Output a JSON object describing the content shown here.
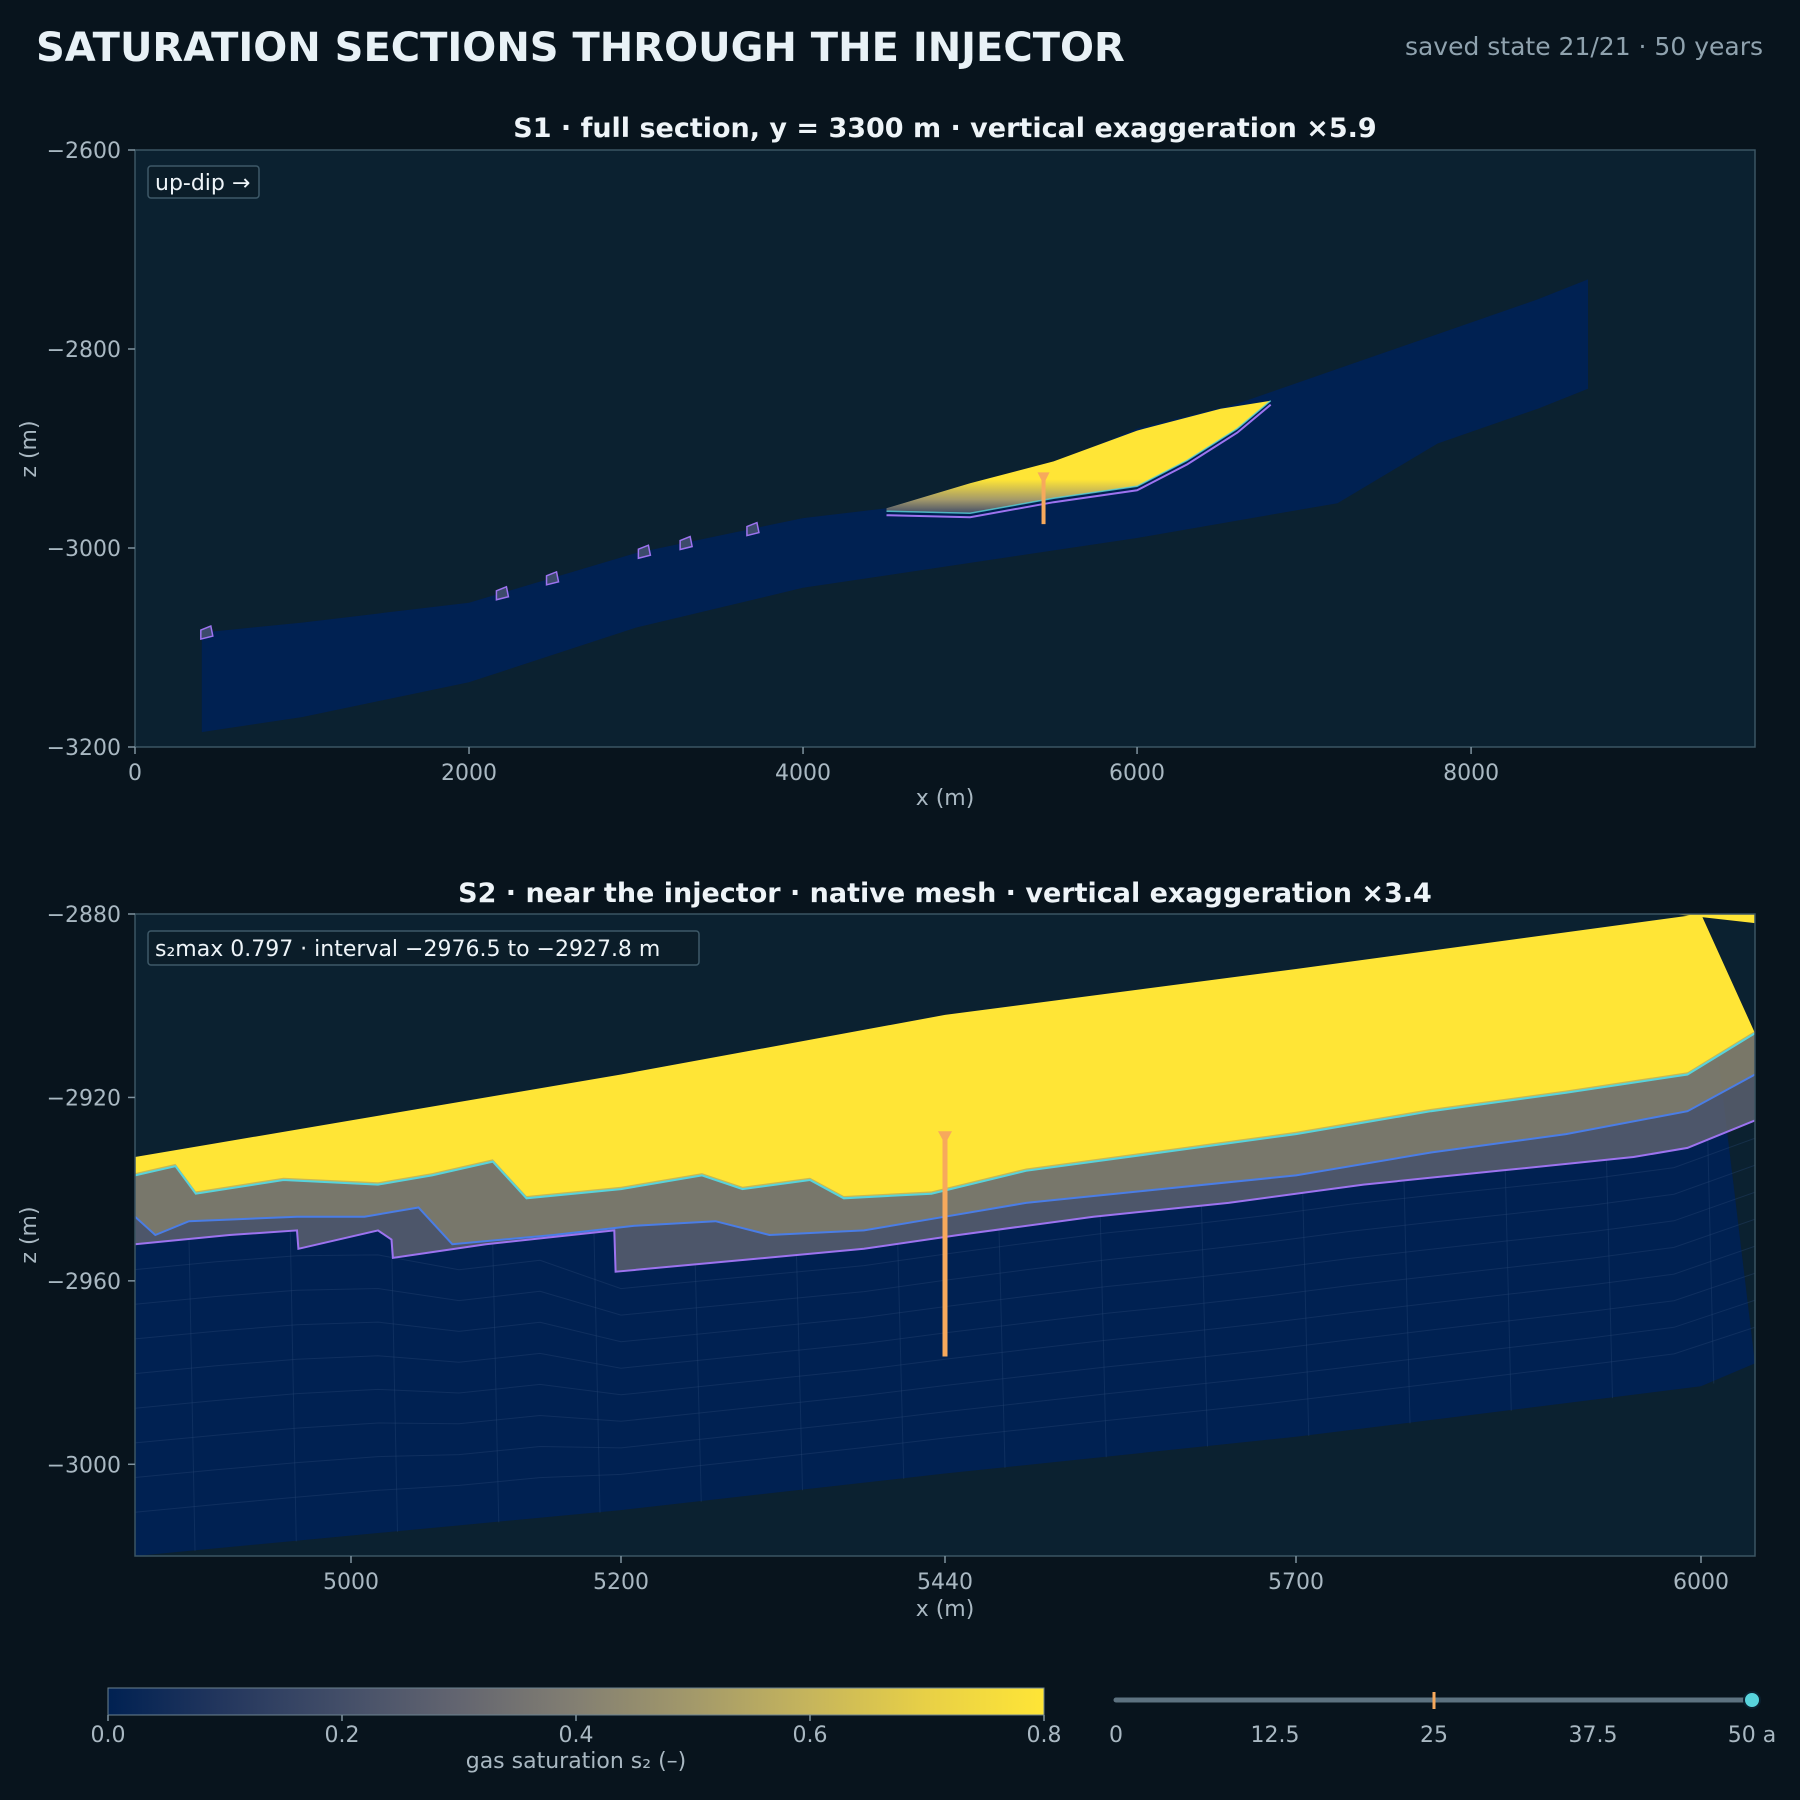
{
  "header": {
    "title": "SATURATION SECTIONS THROUGH THE INJECTOR",
    "state": "saved state 21/21 · 50 years"
  },
  "colors": {
    "page_bg": "#08141d",
    "plot_bg": "#0b2130",
    "reservoir": "#002152",
    "plume": "#ffe536",
    "contour_cyan": "#58d3dc",
    "contour_blue": "#4a7de6",
    "contour_violet": "#9d73f0",
    "well": "#f7a95c",
    "slider_thumb": "#58d3dc"
  },
  "chart_data": [
    {
      "id": "S1",
      "type": "heatmap",
      "title": "S1 · full section, y = 3300 m · vertical exaggeration ×5.9",
      "badge": "up-dip →",
      "xlabel": "x (m)",
      "ylabel": "z (m)",
      "xlim": [
        0,
        9700
      ],
      "ylim": [
        -3200,
        -2600
      ],
      "xticks": [
        "0",
        "2000",
        "4000",
        "6000",
        "8000"
      ],
      "xtick_values": [
        0,
        2000,
        4000,
        6000,
        8000
      ],
      "yticks": [
        "−2600",
        "−2800",
        "−3000",
        "−3200"
      ],
      "ytick_values": [
        -2600,
        -2800,
        -3000,
        -3200
      ],
      "formation_top": [
        [
          400,
          -3085
        ],
        [
          1000,
          -3075
        ],
        [
          2000,
          -3055
        ],
        [
          3000,
          -3005
        ],
        [
          4000,
          -2970
        ],
        [
          4500,
          -2960
        ],
        [
          5000,
          -2935
        ],
        [
          5500,
          -2915
        ],
        [
          6000,
          -2880
        ],
        [
          6600,
          -2855
        ],
        [
          7200,
          -2820
        ],
        [
          7800,
          -2785
        ],
        [
          8400,
          -2750
        ],
        [
          8700,
          -2730
        ]
      ],
      "formation_base": [
        [
          400,
          -3185
        ],
        [
          1000,
          -3170
        ],
        [
          2000,
          -3135
        ],
        [
          3000,
          -3080
        ],
        [
          4000,
          -3040
        ],
        [
          5000,
          -3015
        ],
        [
          6000,
          -2990
        ],
        [
          7200,
          -2955
        ],
        [
          7800,
          -2895
        ],
        [
          8400,
          -2860
        ],
        [
          8700,
          -2840
        ]
      ],
      "plume_top": [
        [
          4500,
          -2960
        ],
        [
          5000,
          -2935
        ],
        [
          5500,
          -2913
        ],
        [
          6000,
          -2882
        ],
        [
          6500,
          -2860
        ],
        [
          6800,
          -2852
        ]
      ],
      "plume_base": [
        [
          4500,
          -2963
        ],
        [
          5000,
          -2965
        ],
        [
          5500,
          -2950
        ],
        [
          6000,
          -2938
        ],
        [
          6300,
          -2912
        ],
        [
          6600,
          -2880
        ],
        [
          6800,
          -2852
        ]
      ],
      "injector": {
        "x": 5440,
        "z_top": -2927,
        "z_bottom": -2976
      }
    },
    {
      "id": "S2",
      "type": "heatmap",
      "title": "S2 · near the injector · native mesh · vertical exaggeration ×3.4",
      "badge": "s₂max 0.797  ·  interval −2976.5 to −2927.8 m",
      "xlabel": "x (m)",
      "ylabel": "z (m)",
      "xlim": [
        4840,
        6040
      ],
      "ylim": [
        -3020,
        -2880
      ],
      "xticks": [
        "5000",
        "5200",
        "5440",
        "5700",
        "6000"
      ],
      "xtick_values": [
        5000,
        5200,
        5440,
        5700,
        6000
      ],
      "yticks": [
        "−2880",
        "−2920",
        "−2960",
        "−3000"
      ],
      "ytick_values": [
        -2880,
        -2920,
        -2960,
        -3000
      ],
      "formation_top": [
        [
          4840,
          -2933
        ],
        [
          5000,
          -2925
        ],
        [
          5200,
          -2915
        ],
        [
          5440,
          -2902
        ],
        [
          5700,
          -2892
        ],
        [
          6000,
          -2880
        ]
      ],
      "formation_base": [
        [
          4840,
          -3020
        ],
        [
          5200,
          -3010
        ],
        [
          5440,
          -3002
        ],
        [
          5700,
          -2994
        ],
        [
          6000,
          -2983
        ],
        [
          6040,
          -2978
        ]
      ],
      "contour_cyan": [
        [
          4840,
          -2937
        ],
        [
          4870,
          -2935
        ],
        [
          4885,
          -2941
        ],
        [
          4950,
          -2938
        ],
        [
          5020,
          -2939
        ],
        [
          5060,
          -2937
        ],
        [
          5105,
          -2934
        ],
        [
          5130,
          -2942
        ],
        [
          5200,
          -2940
        ],
        [
          5260,
          -2937
        ],
        [
          5290,
          -2940
        ],
        [
          5340,
          -2938
        ],
        [
          5365,
          -2942
        ],
        [
          5430,
          -2941
        ],
        [
          5500,
          -2936
        ],
        [
          5600,
          -2932
        ],
        [
          5700,
          -2928
        ],
        [
          5800,
          -2923
        ],
        [
          5900,
          -2919
        ],
        [
          5990,
          -2915
        ],
        [
          6040,
          -2906
        ]
      ],
      "contour_blue": [
        [
          4840,
          -2946
        ],
        [
          4855,
          -2950
        ],
        [
          4880,
          -2947
        ],
        [
          4960,
          -2946
        ],
        [
          5010,
          -2946
        ],
        [
          5050,
          -2944
        ],
        [
          5075,
          -2952
        ],
        [
          5150,
          -2950
        ],
        [
          5210,
          -2948
        ],
        [
          5270,
          -2947
        ],
        [
          5310,
          -2950
        ],
        [
          5380,
          -2949
        ],
        [
          5440,
          -2946
        ],
        [
          5500,
          -2943
        ],
        [
          5600,
          -2940
        ],
        [
          5700,
          -2937
        ],
        [
          5800,
          -2932
        ],
        [
          5900,
          -2928
        ],
        [
          5990,
          -2923
        ],
        [
          6040,
          -2915
        ]
      ],
      "contour_violet": [
        [
          4840,
          -2952
        ],
        [
          4910,
          -2950
        ],
        [
          4960,
          -2949
        ],
        [
          4961,
          -2953
        ],
        [
          5020,
          -2949
        ],
        [
          5030,
          -2951
        ],
        [
          5031,
          -2955
        ],
        [
          5100,
          -2952
        ],
        [
          5195,
          -2949
        ],
        [
          5196,
          -2958
        ],
        [
          5270,
          -2956
        ],
        [
          5380,
          -2953
        ],
        [
          5450,
          -2950
        ],
        [
          5550,
          -2946
        ],
        [
          5650,
          -2943
        ],
        [
          5750,
          -2939
        ],
        [
          5850,
          -2936
        ],
        [
          5950,
          -2933
        ],
        [
          5990,
          -2931
        ],
        [
          6040,
          -2925
        ]
      ],
      "injector": {
        "x": 5440,
        "z_top": -2927.8,
        "z_bottom": -2976.5
      }
    }
  ],
  "colorbar": {
    "label": "gas saturation  s₂  (–)",
    "range": [
      0.0,
      0.8
    ],
    "ticks": [
      "0.0",
      "0.2",
      "0.4",
      "0.6",
      "0.8"
    ],
    "tick_values": [
      0.0,
      0.2,
      0.4,
      0.6,
      0.8
    ],
    "stops": [
      {
        "value": 0.0,
        "color": "#002152"
      },
      {
        "value": 0.1,
        "color": "#24375e"
      },
      {
        "value": 0.2,
        "color": "#434e68"
      },
      {
        "value": 0.3,
        "color": "#636570"
      },
      {
        "value": 0.4,
        "color": "#837f72"
      },
      {
        "value": 0.5,
        "color": "#a3996a"
      },
      {
        "value": 0.6,
        "color": "#c6b55c"
      },
      {
        "value": 0.7,
        "color": "#e8d046"
      },
      {
        "value": 0.8,
        "color": "#ffe536"
      }
    ]
  },
  "timeline": {
    "min": 0,
    "max": 50,
    "ticks": [
      "0",
      "12.5",
      "25",
      "37.5",
      "50 a"
    ],
    "tick_values": [
      0,
      12.5,
      25,
      37.5,
      50
    ],
    "marker": 25,
    "current": 50
  }
}
